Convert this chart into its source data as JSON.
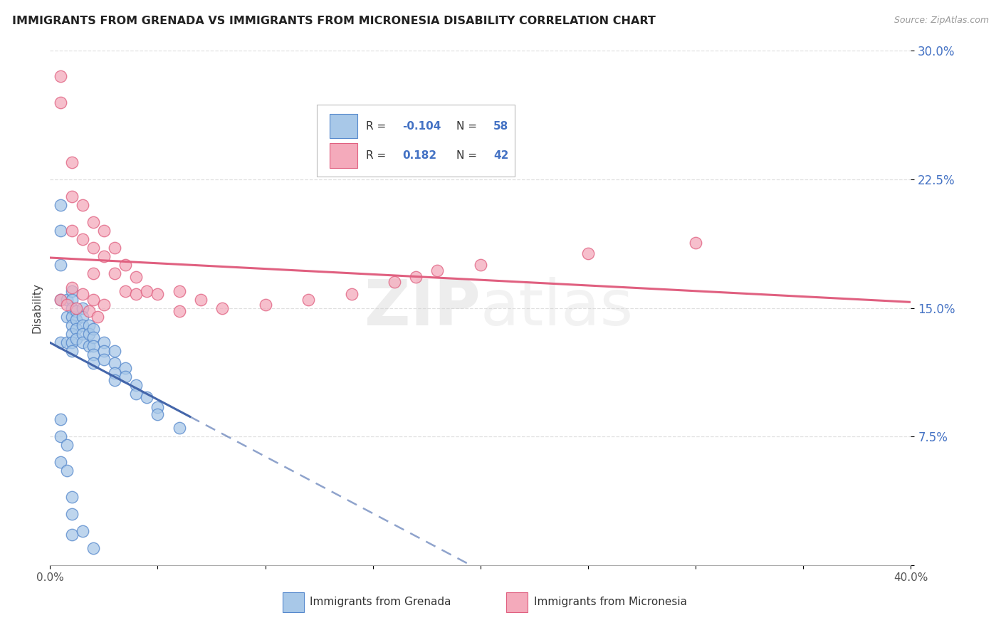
{
  "title": "IMMIGRANTS FROM GRENADA VS IMMIGRANTS FROM MICRONESIA DISABILITY CORRELATION CHART",
  "source": "Source: ZipAtlas.com",
  "ylabel": "Disability",
  "legend_label_1": "Immigrants from Grenada",
  "legend_label_2": "Immigrants from Micronesia",
  "color_grenada_fill": "#a8c8e8",
  "color_grenada_edge": "#5588cc",
  "color_micronesia_fill": "#f4aabb",
  "color_micronesia_edge": "#e06080",
  "color_grenada_line_solid": "#4466aa",
  "color_micronesia_line": "#e06080",
  "xlim": [
    0.0,
    0.4
  ],
  "ylim": [
    0.0,
    0.3
  ],
  "xticks": [
    0.0,
    0.05,
    0.1,
    0.15,
    0.2,
    0.25,
    0.3,
    0.35,
    0.4
  ],
  "xticklabels_show": [
    "0.0%",
    "",
    "",
    "",
    "",
    "",
    "",
    "",
    "40.0%"
  ],
  "yticks": [
    0.0,
    0.075,
    0.15,
    0.225,
    0.3
  ],
  "yticklabels": [
    "",
    "7.5%",
    "15.0%",
    "22.5%",
    "30.0%"
  ],
  "grenada_x": [
    0.005,
    0.005,
    0.005,
    0.005,
    0.005,
    0.008,
    0.008,
    0.008,
    0.01,
    0.01,
    0.01,
    0.01,
    0.01,
    0.01,
    0.01,
    0.01,
    0.012,
    0.012,
    0.012,
    0.012,
    0.015,
    0.015,
    0.015,
    0.015,
    0.015,
    0.018,
    0.018,
    0.018,
    0.02,
    0.02,
    0.02,
    0.02,
    0.02,
    0.025,
    0.025,
    0.025,
    0.03,
    0.03,
    0.03,
    0.03,
    0.035,
    0.035,
    0.04,
    0.04,
    0.045,
    0.05,
    0.05,
    0.06,
    0.005,
    0.005,
    0.005,
    0.008,
    0.008,
    0.01,
    0.01,
    0.01,
    0.015,
    0.02
  ],
  "grenada_y": [
    0.21,
    0.195,
    0.175,
    0.155,
    0.13,
    0.155,
    0.145,
    0.13,
    0.16,
    0.155,
    0.15,
    0.145,
    0.14,
    0.135,
    0.13,
    0.125,
    0.148,
    0.143,
    0.138,
    0.132,
    0.15,
    0.145,
    0.14,
    0.135,
    0.13,
    0.14,
    0.135,
    0.128,
    0.138,
    0.133,
    0.128,
    0.123,
    0.118,
    0.13,
    0.125,
    0.12,
    0.125,
    0.118,
    0.112,
    0.108,
    0.115,
    0.11,
    0.105,
    0.1,
    0.098,
    0.092,
    0.088,
    0.08,
    0.085,
    0.075,
    0.06,
    0.07,
    0.055,
    0.04,
    0.03,
    0.018,
    0.02,
    0.01
  ],
  "micronesia_x": [
    0.005,
    0.005,
    0.01,
    0.01,
    0.01,
    0.015,
    0.015,
    0.02,
    0.02,
    0.02,
    0.025,
    0.025,
    0.03,
    0.03,
    0.035,
    0.035,
    0.04,
    0.04,
    0.045,
    0.05,
    0.06,
    0.06,
    0.07,
    0.08,
    0.1,
    0.12,
    0.14,
    0.16,
    0.17,
    0.18,
    0.2,
    0.25,
    0.3,
    0.01,
    0.015,
    0.02,
    0.025,
    0.005,
    0.008,
    0.012,
    0.018,
    0.022
  ],
  "micronesia_y": [
    0.285,
    0.27,
    0.235,
    0.215,
    0.195,
    0.21,
    0.19,
    0.2,
    0.185,
    0.17,
    0.195,
    0.18,
    0.185,
    0.17,
    0.175,
    0.16,
    0.168,
    0.158,
    0.16,
    0.158,
    0.16,
    0.148,
    0.155,
    0.15,
    0.152,
    0.155,
    0.158,
    0.165,
    0.168,
    0.172,
    0.175,
    0.182,
    0.188,
    0.162,
    0.158,
    0.155,
    0.152,
    0.155,
    0.152,
    0.15,
    0.148,
    0.145
  ],
  "background_color": "#ffffff",
  "grid_color": "#dddddd"
}
